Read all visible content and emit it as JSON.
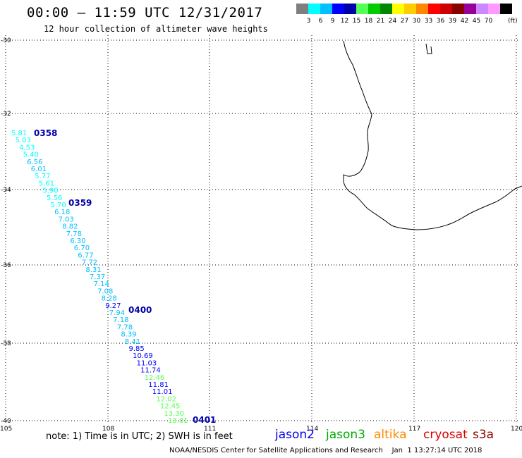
{
  "title": "00:00 — 11:59 UTC 12/31/2017",
  "subtitle": "12 hour collection of altimeter wave heights",
  "legend": {
    "unit": "(ft)",
    "items": [
      {
        "label": "",
        "color": "#7f7f7f"
      },
      {
        "label": "3",
        "color": "#00ffff"
      },
      {
        "label": "6",
        "color": "#00c0ff"
      },
      {
        "label": "9",
        "color": "#0000ff"
      },
      {
        "label": "12",
        "color": "#0000aa"
      },
      {
        "label": "15",
        "color": "#55ff55"
      },
      {
        "label": "18",
        "color": "#00cc00"
      },
      {
        "label": "21",
        "color": "#008800"
      },
      {
        "label": "24",
        "color": "#ffff00"
      },
      {
        "label": "27",
        "color": "#ffcc00"
      },
      {
        "label": "30",
        "color": "#ff8800"
      },
      {
        "label": "33",
        "color": "#ff0000"
      },
      {
        "label": "36",
        "color": "#cc0000"
      },
      {
        "label": "39",
        "color": "#880000"
      },
      {
        "label": "42",
        "color": "#990099"
      },
      {
        "label": "45",
        "color": "#cc88ff"
      },
      {
        "label": "70",
        "color": "#ff99ff"
      },
      {
        "label": "",
        "color": "#000000"
      }
    ]
  },
  "map": {
    "lat_ticks": [
      "-30",
      "-32",
      "-34",
      "-36",
      "-38",
      "-40"
    ],
    "lon_ticks": [
      "105",
      "108",
      "111",
      "114",
      "117",
      "120"
    ],
    "times": [
      "0358",
      "0359",
      "0400",
      "0401"
    ],
    "track": {
      "satellite": "jason2",
      "observations": [
        {
          "v": "5.81",
          "c": "#00ffff"
        },
        {
          "v": "5.03",
          "c": "#00ffff"
        },
        {
          "v": "4.53",
          "c": "#00ffff"
        },
        {
          "v": "5.40",
          "c": "#00ffff"
        },
        {
          "v": "6.56",
          "c": "#00c0ff"
        },
        {
          "v": "6.01",
          "c": "#00c0ff"
        },
        {
          "v": "5.77",
          "c": "#00ffff"
        },
        {
          "v": "5.61",
          "c": "#00ffff"
        },
        {
          "v": "5.90",
          "c": "#00ffff"
        },
        {
          "v": "5.56",
          "c": "#00ffff"
        },
        {
          "v": "5.70",
          "c": "#00ffff"
        },
        {
          "v": "6.18",
          "c": "#00c0ff"
        },
        {
          "v": "7.03",
          "c": "#00c0ff"
        },
        {
          "v": "8.82",
          "c": "#00c0ff"
        },
        {
          "v": "7.78",
          "c": "#00c0ff"
        },
        {
          "v": "6.30",
          "c": "#00c0ff"
        },
        {
          "v": "6.70",
          "c": "#00c0ff"
        },
        {
          "v": "6.77",
          "c": "#00c0ff"
        },
        {
          "v": "7.72",
          "c": "#00c0ff"
        },
        {
          "v": "8.31",
          "c": "#00c0ff"
        },
        {
          "v": "7.37",
          "c": "#00c0ff"
        },
        {
          "v": "7.14",
          "c": "#00c0ff"
        },
        {
          "v": "7.08",
          "c": "#00c0ff"
        },
        {
          "v": "8.28",
          "c": "#00c0ff"
        },
        {
          "v": "9.27",
          "c": "#0000ff"
        },
        {
          "v": "7.94",
          "c": "#00c0ff"
        },
        {
          "v": "7.18",
          "c": "#00c0ff"
        },
        {
          "v": "7.78",
          "c": "#00c0ff"
        },
        {
          "v": "8.39",
          "c": "#00c0ff"
        },
        {
          "v": "8.41",
          "c": "#00c0ff"
        },
        {
          "v": "9.85",
          "c": "#0000ff"
        },
        {
          "v": "10.69",
          "c": "#0000ff"
        },
        {
          "v": "11.03",
          "c": "#0000ff"
        },
        {
          "v": "11.74",
          "c": "#0000ff"
        },
        {
          "v": "12.46",
          "c": "#55ff55"
        },
        {
          "v": "11.81",
          "c": "#0000ff"
        },
        {
          "v": "11.01",
          "c": "#0000ff"
        },
        {
          "v": "12.02",
          "c": "#55ff55"
        },
        {
          "v": "12.45",
          "c": "#55ff55"
        },
        {
          "v": "13.30",
          "c": "#55ff55"
        },
        {
          "v": "13.81",
          "c": "#55ff55"
        }
      ]
    }
  },
  "note": "note: 1) Time is in UTC; 2) SWH is in feet",
  "satellites": [
    {
      "name": "jason2",
      "color": "#0000ee"
    },
    {
      "name": "jason3",
      "color": "#00aa00"
    },
    {
      "name": "altika",
      "color": "#ff8800"
    },
    {
      "name": "cryosat",
      "color": "#dd0000"
    },
    {
      "name": "s3a",
      "color": "#880000"
    }
  ],
  "credit": "NOAA/NESDIS Center for Satellite Applications and Research    Jan  1 13:27:14 UTC 2018"
}
